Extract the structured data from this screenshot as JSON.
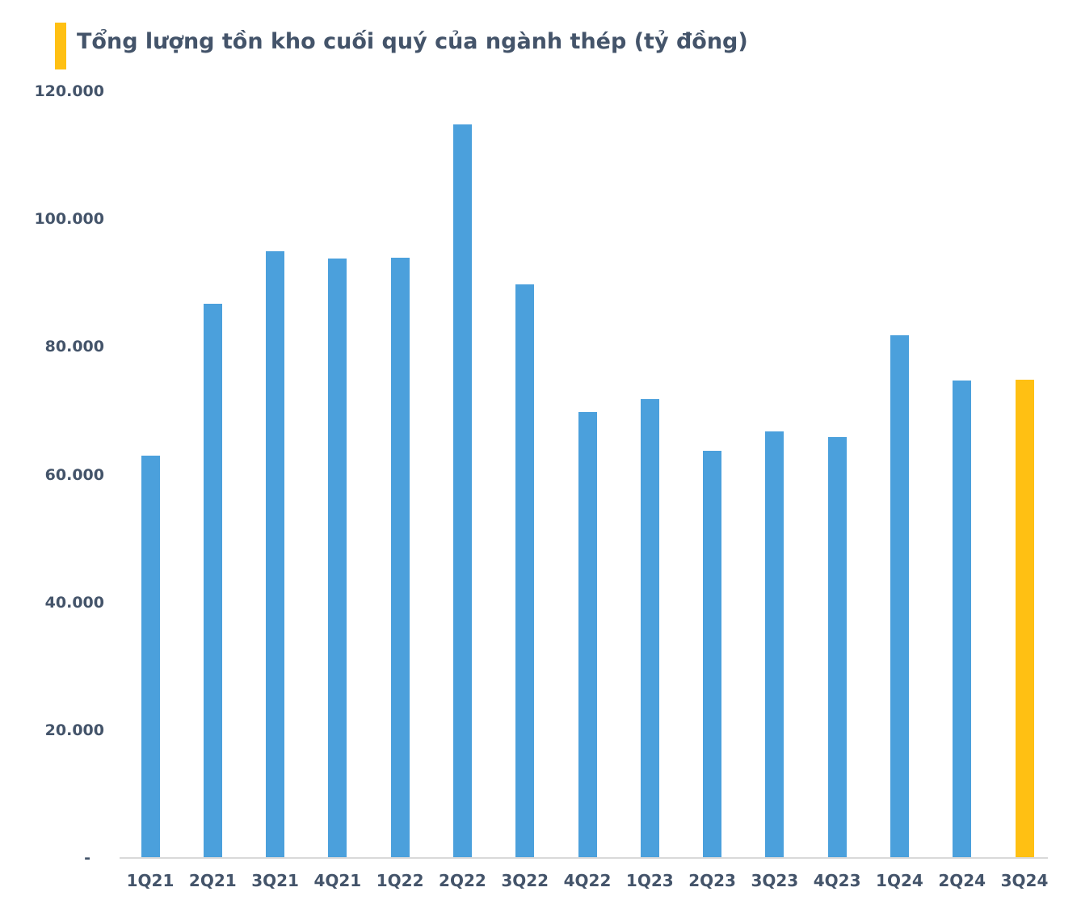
{
  "title": {
    "text": "Tổng lượng tồn kho cuối quý của ngành thép (tỷ đồng)",
    "accent_color": "#FFC013",
    "text_color": "#44546A"
  },
  "chart_data": {
    "type": "bar",
    "title": "Tổng lượng tồn kho cuối quý của ngành thép (tỷ đồng)",
    "unit": "tỷ đồng",
    "categories": [
      "1Q21",
      "2Q21",
      "3Q21",
      "4Q21",
      "1Q22",
      "2Q22",
      "3Q22",
      "4Q22",
      "1Q23",
      "2Q23",
      "3Q23",
      "4Q23",
      "1Q24",
      "2Q24",
      "3Q24"
    ],
    "values": [
      63000,
      86700,
      95000,
      93800,
      93900,
      114800,
      89800,
      69800,
      71800,
      63700,
      66800,
      65900,
      81800,
      74700,
      74800
    ],
    "ylim": [
      0,
      120000
    ],
    "y_ticks": [
      {
        "value": 120000,
        "label": "120.000"
      },
      {
        "value": 100000,
        "label": "100.000"
      },
      {
        "value": 80000,
        "label": "80.000"
      },
      {
        "value": 60000,
        "label": "60.000"
      },
      {
        "value": 40000,
        "label": "40.000"
      },
      {
        "value": 20000,
        "label": "20.000"
      },
      {
        "value": 0,
        "label": "-"
      }
    ],
    "grid": false,
    "legend": "none",
    "bar_color": "#4BA0DC",
    "highlight_color": "#FFC013",
    "highlight_index": 14,
    "axis_line_color": "#D9D9D9",
    "label_color": "#44546A"
  }
}
